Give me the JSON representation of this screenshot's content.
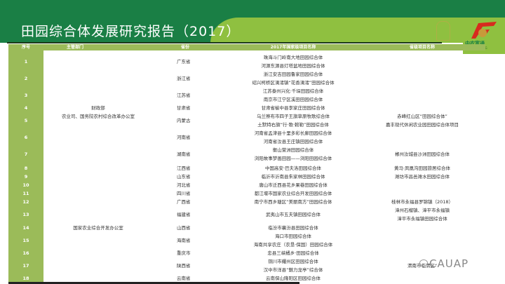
{
  "title": "田园综合体发展研究报告（2017）",
  "logo": {
    "brand": "中农富通",
    "brand_en": "CAU FUTONG"
  },
  "colors": {
    "banner": "#1a7f45",
    "accent": "#8fc040",
    "header_row": "#9bbb59"
  },
  "table": {
    "headers": [
      "序号",
      "主管部门",
      "省份",
      "2017年国家级项目名称",
      "省级项目名称"
    ],
    "departments": [
      {
        "lines": [
          "财政部",
          "农业司、国务院农村综合改革办公室"
        ]
      },
      {
        "lines": [
          "国家农业综合开发办公室"
        ]
      }
    ],
    "rows": [
      {
        "no": "1",
        "province": "广东省",
        "projects": [
          "珠海斗门岭南大地田园综合体",
          "河源东源县灯塔盆地田园综合体"
        ],
        "provincial": []
      },
      {
        "no": "2",
        "province": "浙江省",
        "projects": [
          "浙江安吉田园鲁家田园综合体",
          "绍兴柯桥区漓渚镇“花香漓渚”田园综合体"
        ],
        "provincial": []
      },
      {
        "no": "3",
        "province": "江苏省",
        "projects": [
          "江苏泰州兴化·千垛田园综合体",
          "南京市江宁区溪田田园综合体"
        ],
        "provincial": []
      },
      {
        "no": "4",
        "province": "甘肃省",
        "projects": [
          "甘肃省榆中县李家庄田园综合体"
        ],
        "provincial": []
      },
      {
        "no": "5",
        "province": "内蒙古",
        "projects": [
          "乌兰察布市四子王旗草原牧歌综合体",
          "土默特右旗“行·歌·敕勒”田园综合体"
        ],
        "provincial": [
          "赤峰红山区“田园综合体”",
          "嘉丰现代休闲农业园田园综合体项目"
        ]
      },
      {
        "no": "6",
        "province": "河南省",
        "projects": [
          "河南省孟津县十里多彩长廊田园综合体",
          "河南省汝县王庄镇田园综合体"
        ],
        "provincial": []
      },
      {
        "no": "7",
        "province": "湖南省",
        "projects": [
          "衡山萱洲田园综合体",
          "浏阳故事梦画田园——浏阳田园综合体"
        ],
        "provincial": [
          "郴州汝城县沙洲田园综合体"
        ]
      },
      {
        "no": "8",
        "province": "江西省",
        "projects": [
          "中国高安·巴夫洛田园综合体"
        ],
        "provincial": [
          "黄马·凤凰沟田园旅居综合体"
        ]
      },
      {
        "no": "9",
        "province": "山东省",
        "projects": [
          "临沂市沂南县朱家林田园综合体"
        ],
        "provincial": [
          "潍坊市昌邑潍水田园综合体"
        ]
      },
      {
        "no": "10",
        "province": "河北省",
        "projects": [
          "唐山市迁西县花乡果巷田园综合体"
        ],
        "provincial": []
      },
      {
        "no": "11",
        "province": "四川省",
        "projects": [
          "都江堰市国家农业综合开发田园综合体"
        ],
        "provincial": []
      },
      {
        "no": "12",
        "province": "广西省",
        "projects": [
          "南宁市西乡塘区“美丽南方”田园综合体"
        ],
        "provincial": [
          "桂林市永福县罗锦镇（2018）"
        ]
      },
      {
        "no": "13",
        "province": "福建省",
        "projects": [
          "武夷山市五夫镇田园综合体"
        ],
        "provincial": [
          "漳州石榴镇、漳平市永福镇",
          "漳平市永福镇田园综合体"
        ]
      },
      {
        "no": "14",
        "province": "山西省",
        "projects": [
          "临汾市襄汾县田园综合体"
        ],
        "provincial": []
      },
      {
        "no": "15",
        "province": "海南省",
        "projects": [
          "海口市田园综合体",
          "海南共享农庄（农垦·保国）田园综合体"
        ],
        "provincial": []
      },
      {
        "no": "16",
        "province": "重庆市",
        "projects": [
          "忠县三峡橘乡·田园综合体"
        ],
        "provincial": []
      },
      {
        "no": "17",
        "province": "陕西省",
        "projects": [
          "铜川市耀州区田园综合体",
          "汉中市洋县“魅力龙亭”综合体"
        ],
        "provincial": [
          "渭南市临渭区“"
        ]
      },
      {
        "no": "18",
        "province": "云南省",
        "projects": [
          "云南保山隆阳区田园综合体"
        ],
        "provincial": []
      }
    ]
  },
  "watermark": {
    "text": "CAUAP",
    "icon": "wechat-icon"
  }
}
